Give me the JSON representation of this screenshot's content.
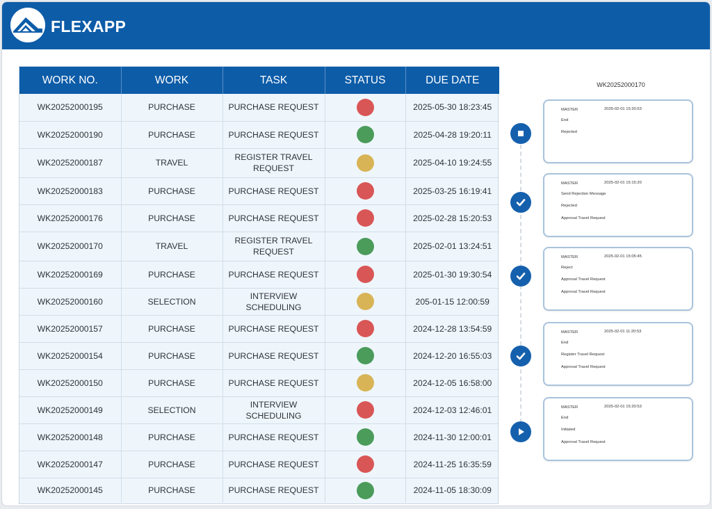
{
  "app": {
    "name": "FLEXAPP"
  },
  "table": {
    "headers": [
      "WORK NO.",
      "WORK",
      "TASK",
      "STATUS",
      "DUE DATE"
    ],
    "status_colors": {
      "red": "#d95656",
      "green": "#4b9b5b",
      "yellow": "#d8b456"
    },
    "rows": [
      {
        "no": "WK20252000195",
        "work": "PURCHASE",
        "task": "PURCHASE REQUEST",
        "status": "red",
        "due": "2025-05-30 18:23:45"
      },
      {
        "no": "WK20252000190",
        "work": "PURCHASE",
        "task": "PURCHASE REQUEST",
        "status": "green",
        "due": "2025-04-28 19:20:11"
      },
      {
        "no": "WK20252000187",
        "work": "TRAVEL",
        "task": "REGISTER TRAVEL REQUEST",
        "status": "yellow",
        "due": "2025-04-10 19:24:55"
      },
      {
        "no": "WK20252000183",
        "work": "PURCHASE",
        "task": "PURCHASE REQUEST",
        "status": "red",
        "due": "2025-03-25 16:19:41"
      },
      {
        "no": "WK20252000176",
        "work": "PURCHASE",
        "task": "PURCHASE REQUEST",
        "status": "red",
        "due": "2025-02-28 15:20:53"
      },
      {
        "no": "WK20252000170",
        "work": "TRAVEL",
        "task": "REGISTER TRAVEL REQUEST",
        "status": "green",
        "due": "2025-02-01 13:24:51"
      },
      {
        "no": "WK20252000169",
        "work": "PURCHASE",
        "task": "PURCHASE REQUEST",
        "status": "red",
        "due": "2025-01-30 19:30:54"
      },
      {
        "no": "WK20252000160",
        "work": "SELECTION",
        "task": "INTERVIEW SCHEDULING",
        "status": "yellow",
        "due": "205-01-15 12:00:59"
      },
      {
        "no": "WK20252000157",
        "work": "PURCHASE",
        "task": "PURCHASE REQUEST",
        "status": "red",
        "due": "2024-12-28 13:54:59"
      },
      {
        "no": "WK20252000154",
        "work": "PURCHASE",
        "task": "PURCHASE REQUEST",
        "status": "green",
        "due": "2024-12-20 16:55:03"
      },
      {
        "no": "WK20252000150",
        "work": "PURCHASE",
        "task": "PURCHASE REQUEST",
        "status": "yellow",
        "due": "2024-12-05 16:58:00"
      },
      {
        "no": "WK20252000149",
        "work": "SELECTION",
        "task": "INTERVIEW SCHEDULING",
        "status": "red",
        "due": "2024-12-03 12:46:01"
      },
      {
        "no": "WK20252000148",
        "work": "PURCHASE",
        "task": "PURCHASE REQUEST",
        "status": "green",
        "due": "2024-11-30 12:00:01"
      },
      {
        "no": "WK20252000147",
        "work": "PURCHASE",
        "task": "PURCHASE REQUEST",
        "status": "red",
        "due": "2024-11-25 16:35:59"
      },
      {
        "no": "WK20252000145",
        "work": "PURCHASE",
        "task": "PURCHASE REQUEST",
        "status": "green",
        "due": "2024-11-05 18:30:09"
      }
    ]
  },
  "timeline": {
    "title": "WK20252000170",
    "entries": [
      {
        "icon": "stop-icon",
        "user": "MASTER",
        "time": "2025-02-01 15:20:53",
        "line1": "End",
        "line2": "Rejected",
        "line3": ""
      },
      {
        "icon": "check-icon",
        "user": "MASTER",
        "time": "2025-02-01 15:15:20",
        "line1": "Send Rejection Message",
        "line2": "Rejected",
        "line3": "Approval Travel Request"
      },
      {
        "icon": "check-icon",
        "user": "MASTER",
        "time": "2025-02-01 15:05:45",
        "line1": "Reject",
        "line2": "Approval Travel Request",
        "line3": "Approval Travel Request"
      },
      {
        "icon": "check-icon",
        "user": "MASTER",
        "time": "2025-02-01 11:20:53",
        "line1": "End",
        "line2": "Register Travel Request",
        "line3": "Approval Travel Request"
      },
      {
        "icon": "play-icon",
        "user": "MASTER",
        "time": "2025-02-01 15:20:53",
        "line1": "End",
        "line2": "Initiated",
        "line3": "Approval Travel Request"
      }
    ]
  }
}
